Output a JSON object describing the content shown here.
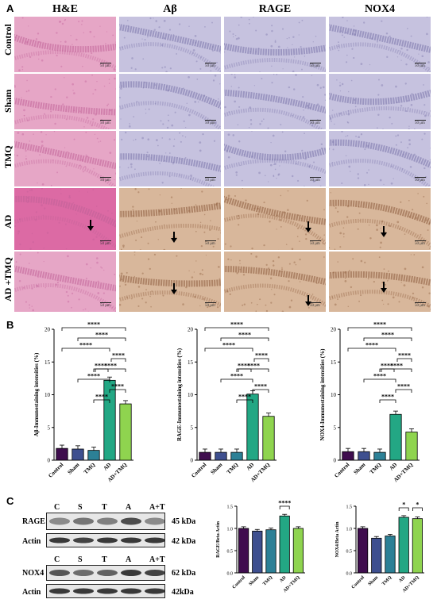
{
  "panels": {
    "a": "A",
    "b": "B",
    "c": "C"
  },
  "columns": [
    "H&E",
    "Aβ",
    "RAGE",
    "NOX4"
  ],
  "rows": [
    "Control",
    "Sham",
    "TMQ",
    "AD",
    "AD +TMQ"
  ],
  "scale_text": "50 μm",
  "colors": {
    "he": "#e6a6c6",
    "he_dark": "#c06098",
    "ihc_blue": "#c6c2df",
    "ihc_blue_dark": "#7873a8",
    "ihc_brown": "#d8b79b",
    "ihc_brown_dark": "#8b5a3a",
    "bars": [
      "#3f0d4e",
      "#3e4f8f",
      "#2c8096",
      "#23a784",
      "#8fd44f"
    ]
  },
  "groups": [
    "Control",
    "Sham",
    "TMQ",
    "AD",
    "AD+TMQ"
  ],
  "sig": "****",
  "sig_single": "*",
  "blots": {
    "lanes": [
      "C",
      "S",
      "T",
      "A",
      "A+T"
    ],
    "rage": {
      "label": "RAGE",
      "kda": "45 kDa"
    },
    "actin1": {
      "label": "Actin",
      "kda": "42 kDa"
    },
    "nox4": {
      "label": "NOX4",
      "kda": "62 kDa"
    },
    "actin2": {
      "label": "Actin",
      "kda": "42kDa"
    }
  },
  "chart_data": [
    {
      "type": "bar",
      "ylabel": "Aβ-Immunostaining intensities (%)",
      "ylim": [
        0,
        20
      ],
      "yticks": [
        0,
        5,
        10,
        15,
        20
      ],
      "categories": [
        "Control",
        "Sham",
        "TMQ",
        "AD",
        "AD+TMQ"
      ],
      "values": [
        1.8,
        1.7,
        1.5,
        12.2,
        8.6
      ]
    },
    {
      "type": "bar",
      "ylabel": "RAGE-Immunostaining intensities (%)",
      "ylim": [
        0,
        20
      ],
      "yticks": [
        0,
        5,
        10,
        15,
        20
      ],
      "categories": [
        "Control",
        "Sham",
        "TMQ",
        "AD",
        "AD+TMQ"
      ],
      "values": [
        1.2,
        1.2,
        1.2,
        10.1,
        6.7
      ]
    },
    {
      "type": "bar",
      "ylabel": "NOX4-Immunostaining intensities (%)",
      "ylim": [
        0,
        20
      ],
      "yticks": [
        0,
        5,
        10,
        15,
        20
      ],
      "categories": [
        "Control",
        "Sham",
        "TMQ",
        "AD",
        "AD+TMQ"
      ],
      "values": [
        1.3,
        1.3,
        1.2,
        7.0,
        4.3
      ]
    },
    {
      "type": "bar",
      "ylabel": "RAGE/Beta Actin",
      "ylim": [
        0,
        1.5
      ],
      "yticks": [
        0.0,
        0.5,
        1.0,
        1.5
      ],
      "categories": [
        "Control",
        "Sham",
        "TMQ",
        "AD",
        "AD+TMQ"
      ],
      "values": [
        1.0,
        0.94,
        0.97,
        1.28,
        1.0
      ]
    },
    {
      "type": "bar",
      "ylabel": "NOX4/Beta Actin",
      "ylim": [
        0,
        1.5
      ],
      "yticks": [
        0.0,
        0.5,
        1.0,
        1.5
      ],
      "categories": [
        "Control",
        "Sham",
        "TMQ",
        "AD",
        "AD+TMQ"
      ],
      "values": [
        1.0,
        0.78,
        0.83,
        1.25,
        1.22
      ]
    }
  ]
}
